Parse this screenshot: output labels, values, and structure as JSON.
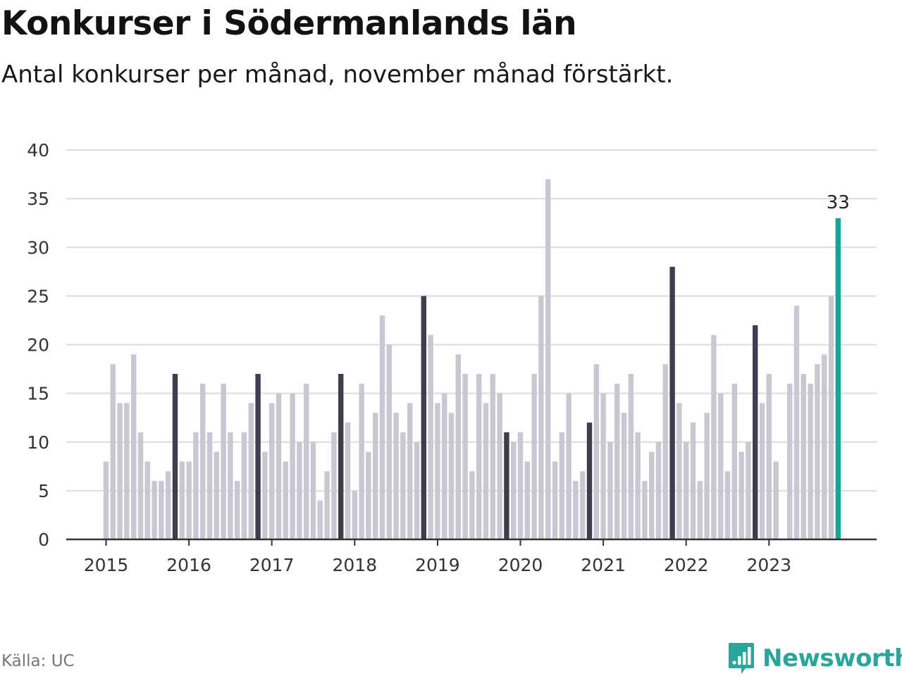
{
  "title": "Konkurser i Södermanlands län",
  "subtitle": "Antal konkurser per månad, november månad förstärkt.",
  "source": "Källa: UC",
  "brand": {
    "name": "Newsworthy",
    "logo_icon": "bar-chart-speech-bubble-icon",
    "color": "#2aa59a"
  },
  "colors": {
    "bar": "#c8c7d2",
    "november": "#3f3e4e",
    "latest": "#16a398",
    "grid": "#dcdcdc",
    "axis": "#333333"
  },
  "chart_data": {
    "type": "bar",
    "title": "Konkurser i Södermanlands län",
    "subtitle": "Antal konkurser per månad, november månad förstärkt.",
    "xlabel": "",
    "ylabel": "",
    "ylim": [
      0,
      40
    ],
    "yticks": [
      0,
      5,
      10,
      15,
      20,
      25,
      30,
      35,
      40
    ],
    "grid": true,
    "start": "2015-01",
    "highlight_month": "November",
    "latest_value_label": "33",
    "x_tick_labels": [
      "2015",
      "2016",
      "2017",
      "2018",
      "2019",
      "2020",
      "2021",
      "2022",
      "2023"
    ],
    "series": [
      {
        "values": [
          8,
          18,
          14,
          14,
          19,
          11,
          8,
          6,
          6,
          7,
          17,
          8,
          8,
          11,
          16,
          11,
          9,
          16,
          11,
          6,
          11,
          14,
          17,
          9,
          14,
          15,
          8,
          15,
          10,
          16,
          10,
          4,
          7,
          11,
          17,
          12,
          5,
          16,
          9,
          13,
          23,
          20,
          13,
          11,
          14,
          10,
          25,
          21,
          14,
          15,
          13,
          19,
          17,
          7,
          17,
          14,
          17,
          15,
          11,
          10,
          11,
          8,
          17,
          25,
          37,
          8,
          11,
          15,
          6,
          7,
          12,
          18,
          15,
          10,
          16,
          13,
          17,
          11,
          6,
          9,
          10,
          18,
          28,
          14,
          10,
          12,
          6,
          13,
          21,
          15,
          7,
          16,
          9,
          10,
          22,
          14,
          17,
          8,
          0,
          16,
          24,
          17,
          16,
          18,
          19,
          25,
          33
        ]
      }
    ]
  }
}
